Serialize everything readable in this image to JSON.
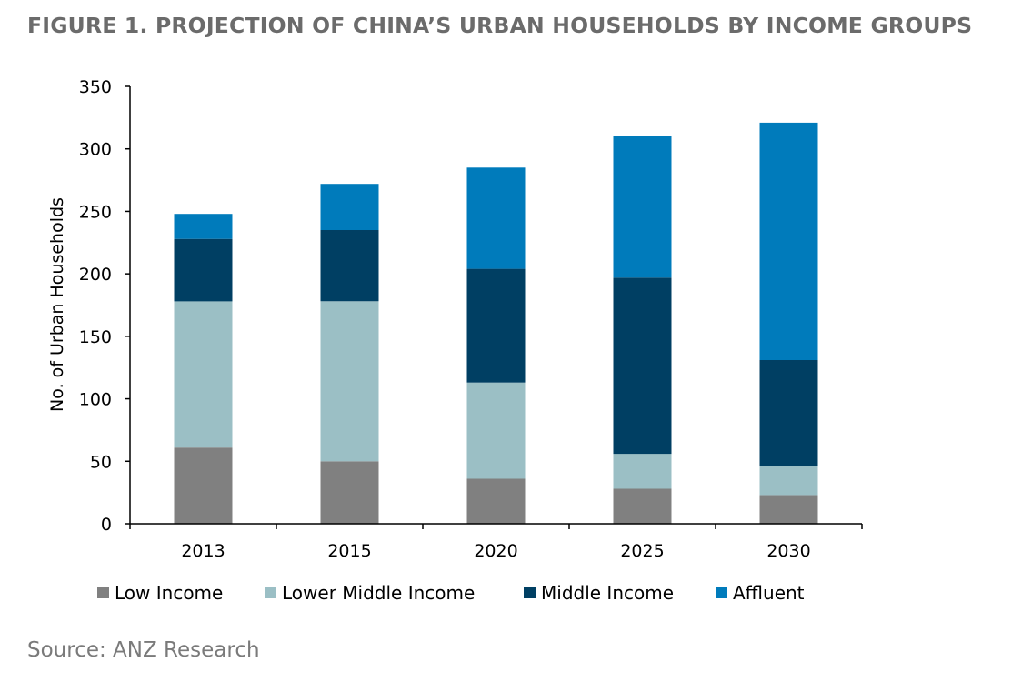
{
  "title": "FIGURE 1. PROJECTION OF CHINA’S URBAN HOUSEHOLDS BY INCOME GROUPS",
  "source": "Source: ANZ Research",
  "chart_data": {
    "type": "bar",
    "stacked": true,
    "categories": [
      "2013",
      "2015",
      "2020",
      "2025",
      "2030"
    ],
    "series": [
      {
        "name": "Low Income",
        "color": "#808080",
        "values": [
          61,
          50,
          36,
          28,
          23
        ]
      },
      {
        "name": "Lower Middle Income",
        "color": "#9bbfc5",
        "values": [
          117,
          128,
          77,
          28,
          23
        ]
      },
      {
        "name": "Middle Income",
        "color": "#003f63",
        "values": [
          50,
          57,
          91,
          141,
          85
        ]
      },
      {
        "name": "Affluent",
        "color": "#007bbb",
        "values": [
          20,
          37,
          81,
          113,
          190
        ]
      }
    ],
    "ylabel": "No. of Urban Households",
    "xlabel": "",
    "ylim": [
      0,
      350
    ],
    "yticks": [
      "0",
      "50",
      "100",
      "150",
      "200",
      "250",
      "300",
      "350"
    ],
    "grid": false,
    "legend_position": "bottom"
  }
}
